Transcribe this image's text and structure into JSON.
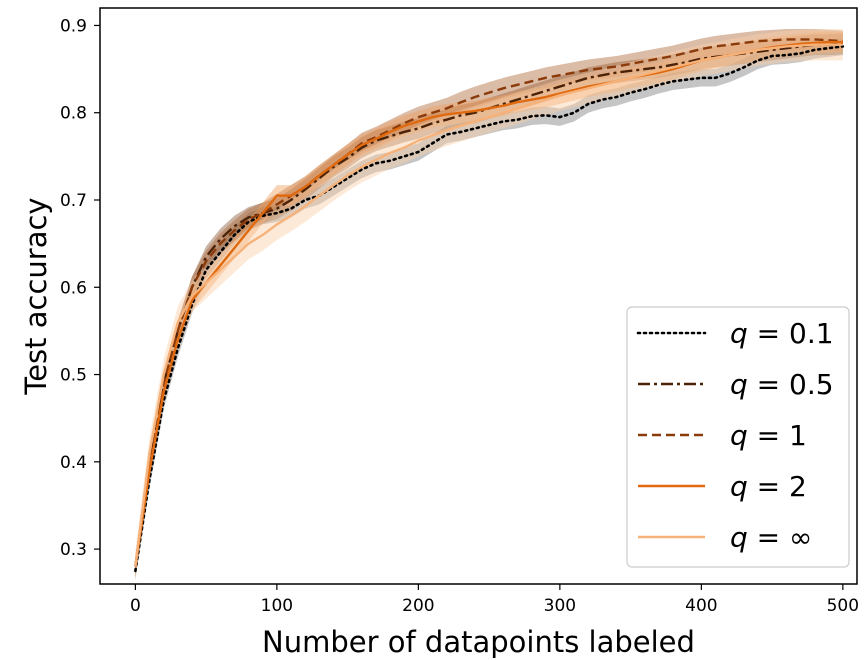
{
  "chart_data": {
    "type": "line",
    "title": "",
    "xlabel": "Number of datapoints labeled",
    "ylabel": "Test accuracy",
    "xlim": [
      -25,
      510
    ],
    "ylim": [
      0.26,
      0.92
    ],
    "x_ticks": [
      0,
      100,
      200,
      300,
      400,
      500
    ],
    "y_ticks": [
      0.3,
      0.4,
      0.5,
      0.6,
      0.7,
      0.8,
      0.9
    ],
    "x_tick_labels": [
      "0",
      "100",
      "200",
      "300",
      "400",
      "500"
    ],
    "y_tick_labels": [
      "0.3",
      "0.4",
      "0.5",
      "0.6",
      "0.7",
      "0.8",
      "0.9"
    ],
    "grid": false,
    "legend_position": "lower-right",
    "x": [
      0,
      10,
      20,
      30,
      40,
      50,
      60,
      70,
      80,
      90,
      100,
      110,
      120,
      130,
      140,
      150,
      160,
      170,
      180,
      190,
      200,
      210,
      220,
      230,
      240,
      250,
      260,
      270,
      280,
      290,
      300,
      310,
      320,
      330,
      340,
      350,
      360,
      370,
      380,
      390,
      400,
      410,
      420,
      430,
      440,
      450,
      460,
      470,
      480,
      490,
      500
    ],
    "series": [
      {
        "name": "q = 0.1",
        "legend_math": {
          "var": "q",
          "rel": " = ",
          "val": "0.1"
        },
        "color": "#000000",
        "style": "dotted",
        "band_color": "#7f7f7f",
        "values": [
          0.275,
          0.38,
          0.47,
          0.53,
          0.58,
          0.62,
          0.64,
          0.66,
          0.675,
          0.682,
          0.685,
          0.69,
          0.7,
          0.705,
          0.715,
          0.725,
          0.735,
          0.742,
          0.745,
          0.75,
          0.755,
          0.765,
          0.775,
          0.778,
          0.782,
          0.786,
          0.79,
          0.792,
          0.796,
          0.797,
          0.795,
          0.8,
          0.81,
          0.815,
          0.818,
          0.823,
          0.827,
          0.832,
          0.836,
          0.838,
          0.84,
          0.84,
          0.845,
          0.852,
          0.86,
          0.865,
          0.866,
          0.868,
          0.872,
          0.874,
          0.876
        ],
        "band": 0.01
      },
      {
        "name": "q = 0.5",
        "legend_math": {
          "var": "q",
          "rel": " = ",
          "val": "0.5"
        },
        "color": "#4a2208",
        "style": "dashdot",
        "band_color": "#8a5a3a",
        "values": [
          0.28,
          0.4,
          0.49,
          0.55,
          0.6,
          0.635,
          0.655,
          0.67,
          0.68,
          0.685,
          0.69,
          0.7,
          0.712,
          0.725,
          0.738,
          0.748,
          0.76,
          0.768,
          0.773,
          0.778,
          0.782,
          0.788,
          0.792,
          0.797,
          0.8,
          0.805,
          0.81,
          0.815,
          0.82,
          0.825,
          0.83,
          0.835,
          0.84,
          0.843,
          0.846,
          0.848,
          0.85,
          0.852,
          0.855,
          0.858,
          0.862,
          0.864,
          0.866,
          0.868,
          0.87,
          0.872,
          0.874,
          0.876,
          0.878,
          0.878,
          0.879
        ],
        "band": 0.012
      },
      {
        "name": "q = 1",
        "legend_math": {
          "var": "q",
          "rel": " = ",
          "val": "1"
        },
        "color": "#8b3a0a",
        "style": "dashed",
        "band_color": "#b06a3a",
        "values": [
          0.28,
          0.4,
          0.49,
          0.55,
          0.6,
          0.63,
          0.65,
          0.665,
          0.678,
          0.685,
          0.695,
          0.705,
          0.715,
          0.728,
          0.74,
          0.752,
          0.765,
          0.772,
          0.78,
          0.788,
          0.795,
          0.8,
          0.805,
          0.812,
          0.818,
          0.823,
          0.828,
          0.832,
          0.836,
          0.84,
          0.843,
          0.846,
          0.849,
          0.851,
          0.853,
          0.856,
          0.859,
          0.862,
          0.865,
          0.869,
          0.873,
          0.876,
          0.878,
          0.88,
          0.882,
          0.883,
          0.884,
          0.884,
          0.884,
          0.883,
          0.882
        ],
        "band": 0.012
      },
      {
        "name": "q = 2",
        "legend_math": {
          "var": "q",
          "rel": " = ",
          "val": "2"
        },
        "color": "#e06a10",
        "style": "solid",
        "band_color": "#f0a060",
        "values": [
          0.28,
          0.39,
          0.48,
          0.54,
          0.585,
          0.605,
          0.625,
          0.645,
          0.665,
          0.685,
          0.705,
          0.705,
          0.715,
          0.728,
          0.74,
          0.752,
          0.763,
          0.77,
          0.778,
          0.785,
          0.79,
          0.795,
          0.798,
          0.8,
          0.802,
          0.805,
          0.808,
          0.812,
          0.815,
          0.818,
          0.822,
          0.826,
          0.83,
          0.833,
          0.836,
          0.84,
          0.843,
          0.846,
          0.85,
          0.855,
          0.86,
          0.863,
          0.866,
          0.869,
          0.872,
          0.875,
          0.877,
          0.879,
          0.88,
          0.881,
          0.881
        ],
        "band": 0.012
      },
      {
        "name": "q = ∞",
        "legend_math": {
          "var": "q",
          "rel": " = ",
          "val": "∞"
        },
        "color": "#f7b27a",
        "style": "solid",
        "band_color": "#fbcfa6",
        "values": [
          0.28,
          0.41,
          0.5,
          0.56,
          0.59,
          0.605,
          0.62,
          0.635,
          0.65,
          0.66,
          0.672,
          0.682,
          0.693,
          0.705,
          0.717,
          0.728,
          0.738,
          0.746,
          0.754,
          0.76,
          0.768,
          0.774,
          0.78,
          0.785,
          0.79,
          0.795,
          0.8,
          0.805,
          0.81,
          0.815,
          0.82,
          0.824,
          0.828,
          0.832,
          0.836,
          0.84,
          0.844,
          0.848,
          0.852,
          0.856,
          0.86,
          0.863,
          0.866,
          0.869,
          0.872,
          0.874,
          0.876,
          0.877,
          0.878,
          0.878,
          0.878
        ],
        "band": 0.018
      }
    ]
  }
}
